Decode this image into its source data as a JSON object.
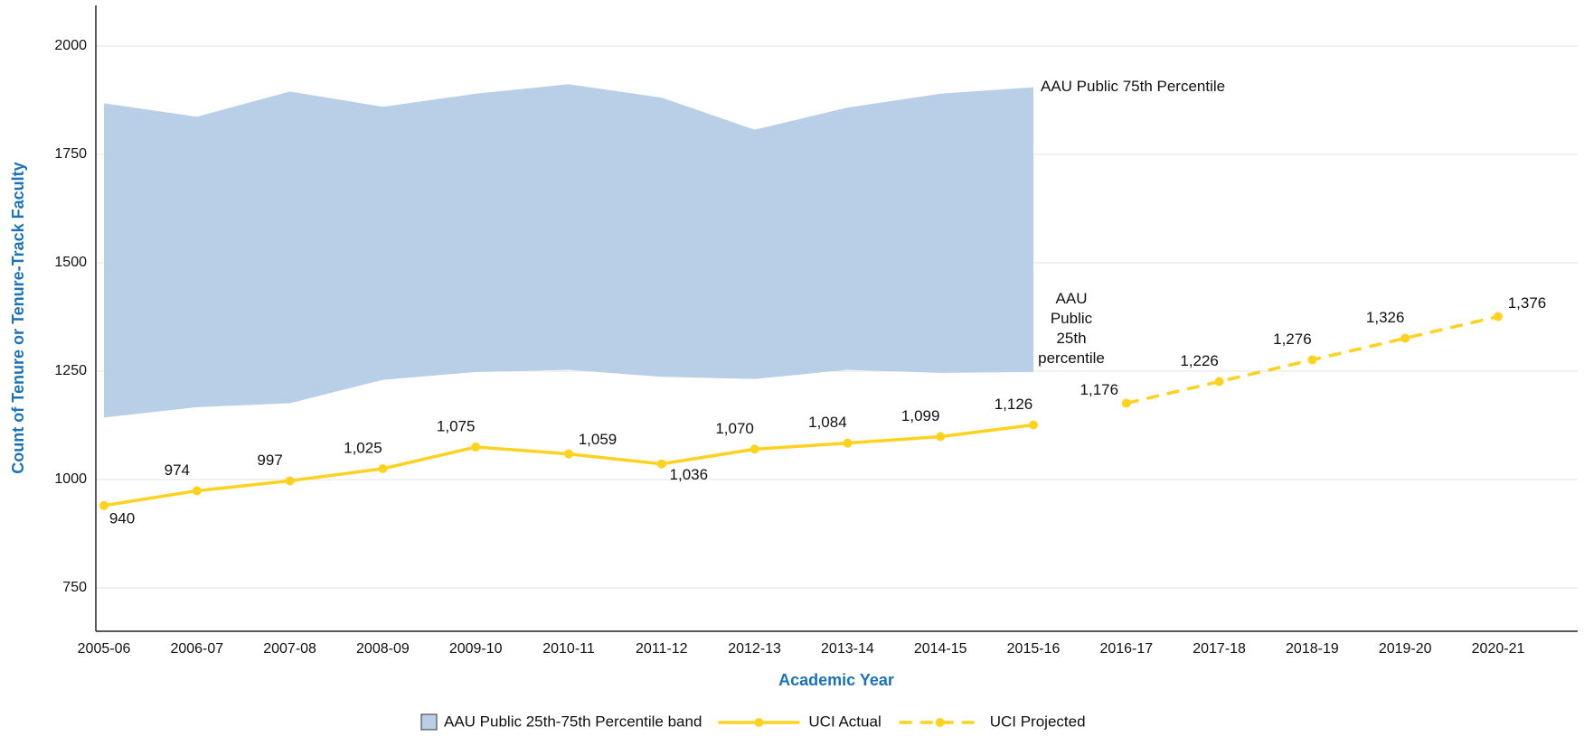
{
  "chart_data": {
    "type": "line",
    "y_axis_label": "Count of Tenure or Tenure-Track Faculty",
    "x_axis_label": "Academic Year",
    "categories": [
      "2005-06",
      "2006-07",
      "2007-08",
      "2008-09",
      "2009-10",
      "2010-11",
      "2011-12",
      "2012-13",
      "2013-14",
      "2014-15",
      "2015-16",
      "2016-17",
      "2017-18",
      "2018-19",
      "2019-20",
      "2020-21"
    ],
    "band": {
      "name": "AAU Public 25th-75th Percentile band",
      "color": "#b8cfe7",
      "upper": [
        1868,
        1837,
        1895,
        1860,
        1890,
        1912,
        1881,
        1807,
        1858,
        1890,
        1905,
        null,
        null,
        null,
        null,
        null
      ],
      "lower": [
        1143,
        1167,
        1176,
        1230,
        1248,
        1253,
        1237,
        1232,
        1253,
        1246,
        1248,
        null,
        null,
        null,
        null,
        null
      ]
    },
    "series": [
      {
        "name": "UCI Actual",
        "color": "#ffd21f",
        "dashed": false,
        "values": [
          940,
          974,
          997,
          1025,
          1075,
          1059,
          1036,
          1070,
          1084,
          1099,
          1126,
          null,
          null,
          null,
          null,
          null
        ],
        "value_labels": [
          "940",
          "974",
          "997",
          "1,025",
          "1,075",
          "1,059",
          "1,036",
          "1,070",
          "1,084",
          "1,099",
          "1,126",
          null,
          null,
          null,
          null,
          null
        ]
      },
      {
        "name": "UCI Projected",
        "color": "#ffd21f",
        "dashed": true,
        "values": [
          null,
          null,
          null,
          null,
          null,
          null,
          null,
          null,
          null,
          null,
          null,
          1176,
          1226,
          1276,
          1326,
          1376
        ],
        "value_labels": [
          null,
          null,
          null,
          null,
          null,
          null,
          null,
          null,
          null,
          null,
          null,
          "1,176",
          "1,226",
          "1,276",
          "1,326",
          "1,376"
        ]
      }
    ],
    "annotation_75th": "AAU Public 75th Percentile",
    "annotation_25th": [
      "AAU",
      "Public",
      "25th",
      "percentile"
    ],
    "ylim": [
      650,
      2100
    ],
    "yticks": [
      750,
      1000,
      1250,
      1500,
      1750,
      2000
    ],
    "grid": true
  }
}
